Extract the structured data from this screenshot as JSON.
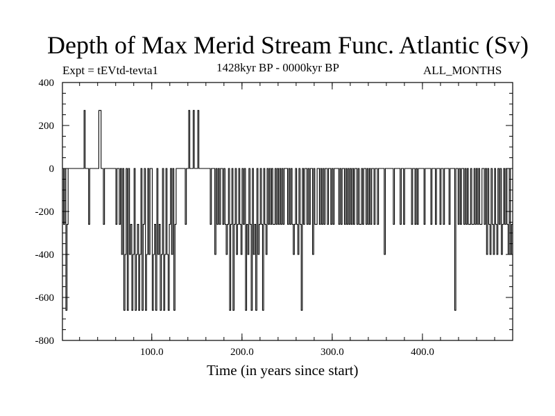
{
  "chart_data": {
    "type": "line",
    "title": "Depth of Max Merid Stream Func. Atlantic (Sv)",
    "subtitle_left": "Expt = tEVtd-tevta1",
    "subtitle_center": "1428kyr BP - 0000kyr BP",
    "subtitle_right": "ALL_MONTHS",
    "xlabel": "Time (in years since start)",
    "ylabel": "",
    "xlim": [
      1,
      500
    ],
    "ylim": [
      -800,
      400
    ],
    "xticks": [
      100,
      200,
      300,
      400
    ],
    "xtick_labels": [
      "100.0",
      "200.0",
      "300.0",
      "400.0"
    ],
    "yticks": [
      400,
      200,
      0,
      -200,
      -400,
      -600,
      -800
    ],
    "ytick_labels": [
      "400",
      "200",
      "0",
      "-200",
      "-400",
      "-600",
      "-800"
    ],
    "grid": false,
    "series": [
      {
        "values": [
          0,
          -260,
          0,
          -660,
          -260,
          0,
          0,
          0,
          0,
          0,
          0,
          0,
          0,
          0,
          0,
          0,
          0,
          0,
          0,
          270,
          0,
          0,
          0,
          -260,
          0,
          0,
          0,
          0,
          0,
          0,
          0,
          0,
          270,
          270,
          0,
          0,
          -260,
          0,
          0,
          0,
          0,
          0,
          0,
          0,
          0,
          0,
          0,
          -260,
          0,
          0,
          -260,
          0,
          -400,
          0,
          -660,
          -400,
          0,
          -660,
          0,
          -400,
          -260,
          -660,
          -400,
          0,
          -660,
          -400,
          -260,
          -660,
          -400,
          0,
          -660,
          -260,
          0,
          -660,
          -400,
          0,
          -400,
          0,
          0,
          -660,
          -400,
          -260,
          -660,
          0,
          -400,
          -260,
          -660,
          -400,
          0,
          -660,
          -400,
          0,
          -400,
          -660,
          -260,
          0,
          -400,
          0,
          -660,
          -260,
          0,
          0,
          0,
          0,
          0,
          0,
          0,
          0,
          -260,
          0,
          0,
          270,
          0,
          0,
          0,
          270,
          0,
          0,
          0,
          270,
          0,
          0,
          0,
          0,
          0,
          0,
          0,
          0,
          0,
          0,
          -260,
          0,
          0,
          0,
          -400,
          0,
          -260,
          0,
          -260,
          0,
          0,
          -260,
          0,
          -260,
          -400,
          -260,
          0,
          -660,
          -260,
          0,
          -660,
          -260,
          0,
          -400,
          -260,
          0,
          -260,
          -400,
          0,
          -260,
          0,
          -660,
          -260,
          -400,
          0,
          -260,
          -660,
          0,
          -400,
          -260,
          -660,
          0,
          -400,
          -260,
          0,
          -260,
          -660,
          0,
          -260,
          -400,
          0,
          -260,
          0,
          -260,
          0,
          -260,
          -260,
          0,
          -260,
          0,
          -260,
          0,
          -260,
          0,
          -260,
          0,
          0,
          0,
          -260,
          0,
          -260,
          0,
          -260,
          -400,
          -260,
          0,
          -260,
          -400,
          0,
          -260,
          -660,
          0,
          -260,
          0,
          0,
          -260,
          0,
          -260,
          0,
          0,
          -400,
          0,
          -260,
          -260,
          0,
          0,
          -260,
          0,
          -260,
          0,
          -260,
          0,
          0,
          -260,
          0,
          0,
          -260,
          0,
          -260,
          0,
          0,
          0,
          0,
          -260,
          0,
          -260,
          0,
          0,
          -260,
          0,
          -260,
          0,
          -260,
          0,
          -260,
          0,
          -260,
          0,
          0,
          -260,
          0,
          -260,
          -260,
          0,
          -260,
          0,
          0,
          -260,
          0,
          -260,
          0,
          -260,
          0,
          0,
          -260,
          0,
          0,
          -260,
          0,
          0,
          0,
          0,
          0,
          -400,
          0,
          0,
          0,
          0,
          0,
          0,
          0,
          -260,
          0,
          0,
          0,
          0,
          0,
          -260,
          0,
          0,
          -260,
          0,
          0,
          0,
          0,
          0,
          0,
          -260,
          0,
          0,
          -260,
          0,
          -260,
          0,
          0,
          0,
          0,
          0,
          -260,
          0,
          0,
          0,
          0,
          0,
          -260,
          0,
          0,
          0,
          -260,
          0,
          0,
          0,
          -260,
          0,
          0,
          -260,
          0,
          0,
          0,
          0,
          -260,
          0,
          0,
          0,
          0,
          -660,
          0,
          0,
          -260,
          0,
          -260,
          0,
          0,
          -260,
          0,
          -260,
          0,
          -260,
          -260,
          0,
          -260,
          -260,
          0,
          -260,
          0,
          -260,
          0,
          -260,
          -260,
          0,
          0,
          -260,
          0,
          -400,
          0,
          -260,
          -400,
          0,
          -260,
          -400,
          0,
          -260,
          -400,
          0,
          -260,
          0,
          -400,
          -260,
          0,
          -260,
          0,
          -260,
          -400,
          0,
          -400,
          -260
        ]
      }
    ]
  }
}
